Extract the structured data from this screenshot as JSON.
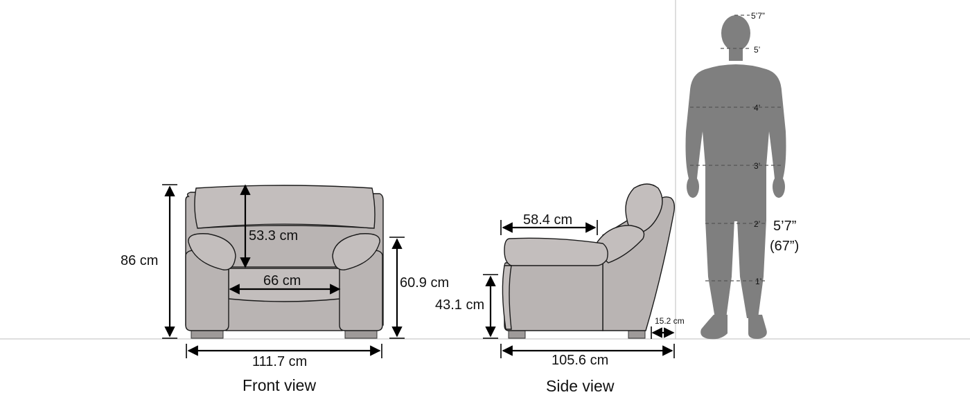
{
  "front_view": {
    "caption": "Front view",
    "height_label": "86 cm",
    "backrest_label": "53.3 cm",
    "seat_width_label": "66 cm",
    "arm_height_label": "60.9 cm",
    "total_width_label": "111.7 cm"
  },
  "side_view": {
    "caption": "Side view",
    "seat_depth_label": "58.4 cm",
    "seat_height_label": "43.1 cm",
    "recline_offset_label": "15.2 cm",
    "total_depth_label": "105.6 cm"
  },
  "human_scale": {
    "ticks": [
      "5’7”",
      "5’",
      "4’",
      "3’",
      "2’",
      "1’"
    ],
    "height_label": "5’7”",
    "height_inches_label": "(67”)"
  },
  "colors": {
    "sofa_fill": "#b9b4b3",
    "silhouette_fill": "#7f7f7f",
    "ground_line": "#bdbdbd"
  }
}
